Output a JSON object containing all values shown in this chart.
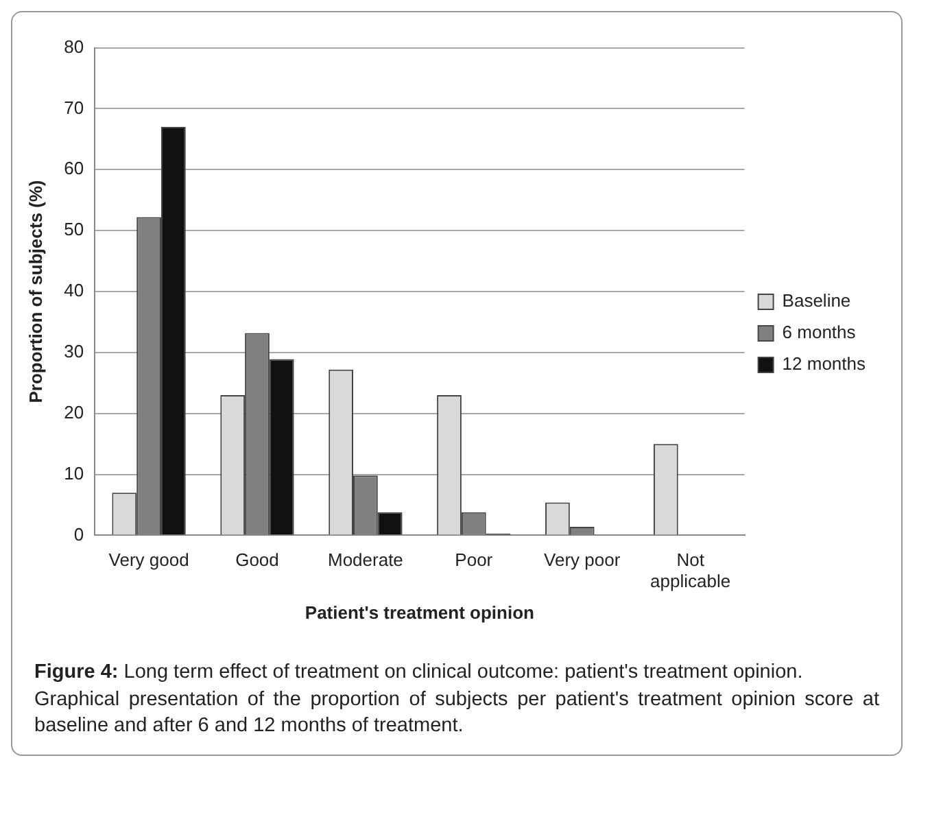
{
  "chart_data": {
    "type": "bar",
    "xlabel": "Patient's treatment opinion",
    "ylabel": "Proportion of subjects (%)",
    "categories": [
      "Very good",
      "Good",
      "Moderate",
      "Poor",
      "Very poor",
      "Not applicable"
    ],
    "series": [
      {
        "name": "Baseline",
        "color": "#d9d9d9",
        "values": [
          7,
          23,
          27.2,
          23,
          5.4,
          15
        ]
      },
      {
        "name": "6 months",
        "color": "#808080",
        "values": [
          52.2,
          33.2,
          9.8,
          3.8,
          1.4,
          0
        ]
      },
      {
        "name": "12 months",
        "color": "#111111",
        "values": [
          67,
          28.9,
          3.8,
          0.3,
          0,
          0
        ]
      }
    ],
    "ylim": [
      0,
      80
    ],
    "yticks": [
      0,
      10,
      20,
      30,
      40,
      50,
      60,
      70,
      80
    ],
    "grid": "y",
    "legend": "right",
    "annotations": [
      "Figure 4: Long term effect of treatment on clinical outcome: patient's treatment opinion.",
      "Graphical presentation of the proportion of subjects per patient's treatment opinion score at baseline and after 6 and 12 months of treatment."
    ]
  }
}
